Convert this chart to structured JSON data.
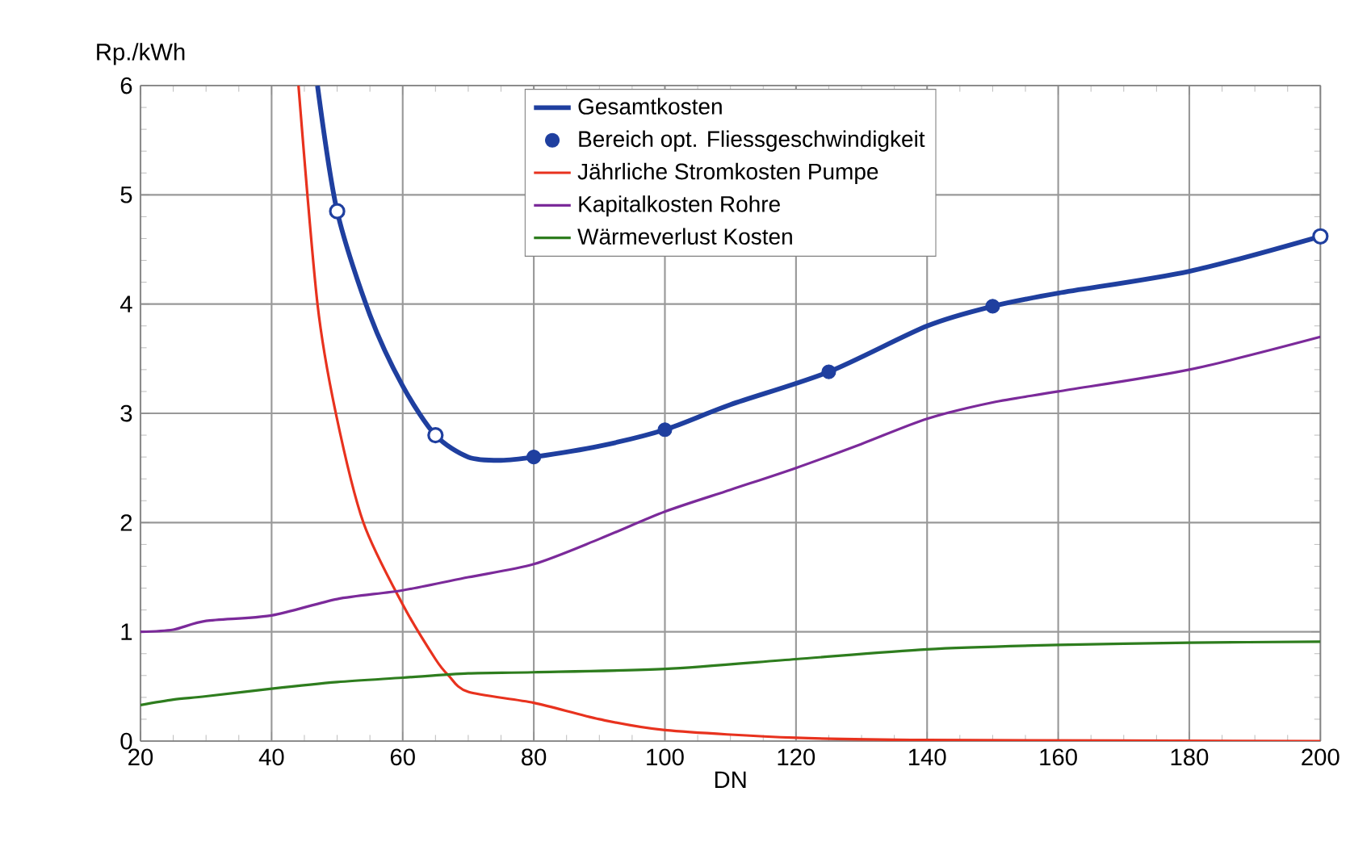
{
  "chart_data": {
    "type": "line",
    "ylabel": "Rp./kWh",
    "xlabel": "DN",
    "xlim": [
      20,
      200
    ],
    "xticks": [
      20,
      40,
      60,
      80,
      100,
      120,
      140,
      160,
      180,
      200
    ],
    "ylim": [
      0,
      6
    ],
    "yticks": [
      0,
      1,
      2,
      3,
      4,
      5,
      6
    ],
    "grid": true,
    "legend": "top",
    "marker": "none",
    "line_style": "solid",
    "series": [
      {
        "name": "Gesamtkosten",
        "color": "#1f3f9f",
        "x": [
          47,
          50,
          55,
          60,
          65,
          70,
          75,
          80,
          90,
          100,
          110,
          125,
          140,
          150,
          160,
          180,
          200
        ],
        "values": [
          6,
          4.85,
          3.9,
          3.25,
          2.8,
          2.6,
          2.57,
          2.6,
          2.7,
          2.85,
          3.08,
          3.38,
          3.8,
          3.98,
          4.1,
          4.3,
          4.62
        ]
      },
      {
        "name": "Bereich opt. Fliessgeschwindigkeit",
        "type": "scatter",
        "marker": "circle",
        "color": "#1f3f9f",
        "x": [
          80,
          100,
          125,
          150
        ],
        "values": [
          2.6,
          2.85,
          3.38,
          3.98
        ]
      },
      {
        "name": "Jährliche Stromkosten Pumpe",
        "color": "#e8321e",
        "x": [
          44.1,
          47,
          49.8,
          54,
          60,
          65,
          67,
          70,
          80,
          90,
          100,
          120,
          140,
          200
        ],
        "values": [
          6,
          4,
          3,
          2,
          1.25,
          0.75,
          0.6,
          0.45,
          0.35,
          0.2,
          0.1,
          0.03,
          0.01,
          0
        ]
      },
      {
        "name": "Kapitalkosten Rohre",
        "color": "#7b2a9a",
        "x": [
          20,
          25,
          30,
          40,
          50,
          60,
          70,
          80,
          90,
          100,
          110,
          120,
          130,
          140,
          150,
          160,
          180,
          200
        ],
        "values": [
          1.0,
          1.02,
          1.1,
          1.15,
          1.3,
          1.38,
          1.5,
          1.62,
          1.85,
          2.1,
          2.3,
          2.5,
          2.72,
          2.95,
          3.1,
          3.2,
          3.4,
          3.7
        ]
      },
      {
        "name": "Wärmeverlust Kosten",
        "color": "#2e7d1e",
        "x": [
          20,
          25,
          30,
          40,
          50,
          60,
          70,
          80,
          100,
          120,
          140,
          160,
          180,
          200
        ],
        "values": [
          0.33,
          0.38,
          0.41,
          0.48,
          0.54,
          0.58,
          0.62,
          0.63,
          0.66,
          0.75,
          0.84,
          0.88,
          0.9,
          0.91
        ]
      },
      {
        "type": "scatter",
        "marker": "circle",
        "color": "#1f3f9f",
        "x": [
          50,
          65,
          200
        ],
        "values": [
          4.85,
          2.8,
          4.62
        ]
      }
    ]
  }
}
